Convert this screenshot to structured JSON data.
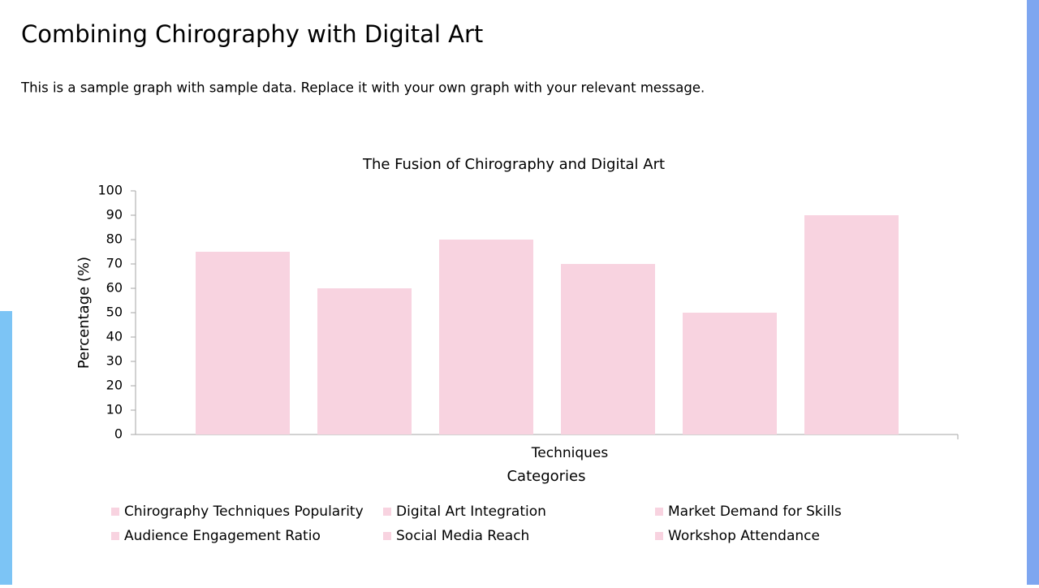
{
  "header": {
    "title": "Combining Chirography with Digital Art",
    "subtitle": "This is a sample graph with sample data. Replace it with your own graph with your relevant message."
  },
  "chart_data": {
    "type": "bar",
    "title": "The Fusion of Chirography and Digital Art",
    "x_label": "Categories",
    "y_label": "Percentage (%)",
    "categories": [
      "Techniques"
    ],
    "series": [
      {
        "name": "Chirography Techniques Popularity",
        "color": "#f8d3e0",
        "values": [
          75
        ]
      },
      {
        "name": "Digital Art Integration",
        "color": "#f8d3e0",
        "values": [
          60
        ]
      },
      {
        "name": "Market Demand for Skills",
        "color": "#f8d3e0",
        "values": [
          80
        ]
      },
      {
        "name": "Audience Engagement Ratio",
        "color": "#f8d3e0",
        "values": [
          70
        ]
      },
      {
        "name": "Social Media Reach",
        "color": "#f8d3e0",
        "values": [
          50
        ]
      },
      {
        "name": "Workshop Attendance",
        "color": "#f8d3e0",
        "values": [
          90
        ]
      }
    ],
    "ylim": [
      0,
      100
    ],
    "yticks": [
      0,
      10,
      20,
      30,
      40,
      50,
      60,
      70,
      80,
      90,
      100
    ],
    "grid": false
  }
}
